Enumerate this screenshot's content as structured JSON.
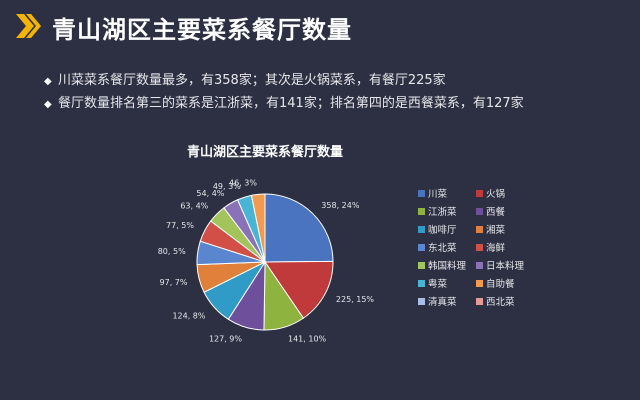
{
  "page": {
    "title": "青山湖区主要菜系餐厅数量",
    "bullets": [
      "川菜菜系餐厅数量最多，有358家；其次是火锅菜系，有餐厅225家",
      "餐厅数量排名第三的菜系是江浙菜，有141家；排名第四的是西餐菜系，有127家"
    ],
    "accent_color": "#f4b400",
    "icon": "chevron-right-icon"
  },
  "chart_data": {
    "type": "pie",
    "title": "青山湖区主要菜系餐厅数量",
    "legend_position": "right",
    "slices": [
      {
        "name": "川菜",
        "value": 358,
        "label": "358, 24%",
        "color": "#4a74c0"
      },
      {
        "name": "火锅",
        "value": 225,
        "label": "225, 15%",
        "color": "#c0393b"
      },
      {
        "name": "江浙菜",
        "value": 141,
        "label": "141, 10%",
        "color": "#8fb33f"
      },
      {
        "name": "西餐",
        "value": 127,
        "label": "127, 9%",
        "color": "#6d4f9c"
      },
      {
        "name": "咖啡厅",
        "value": 124,
        "label": "124, 8%",
        "color": "#2f9bc6"
      },
      {
        "name": "湘菜",
        "value": 97,
        "label": "97, 7%",
        "color": "#e0803a"
      },
      {
        "name": "东北菜",
        "value": 80,
        "label": "80, 5%",
        "color": "#5a86cf"
      },
      {
        "name": "海鲜",
        "value": 77,
        "label": "77, 5%",
        "color": "#d24f47"
      },
      {
        "name": "韩国料理",
        "value": 63,
        "label": "63, 4%",
        "color": "#a3c45a"
      },
      {
        "name": "日本料理",
        "value": 54,
        "label": "54, 4%",
        "color": "#8a72b8"
      },
      {
        "name": "粤菜",
        "value": 49,
        "label": "49, 3%",
        "color": "#48b4d6"
      },
      {
        "name": "自助餐",
        "value": 46,
        "label": "46, 3%",
        "color": "#f29b50"
      },
      {
        "name": "清真菜",
        "value": 0,
        "label": "",
        "color": "#a9bde6"
      },
      {
        "name": "西北菜",
        "value": 0,
        "label": "",
        "color": "#e59a96"
      }
    ]
  }
}
